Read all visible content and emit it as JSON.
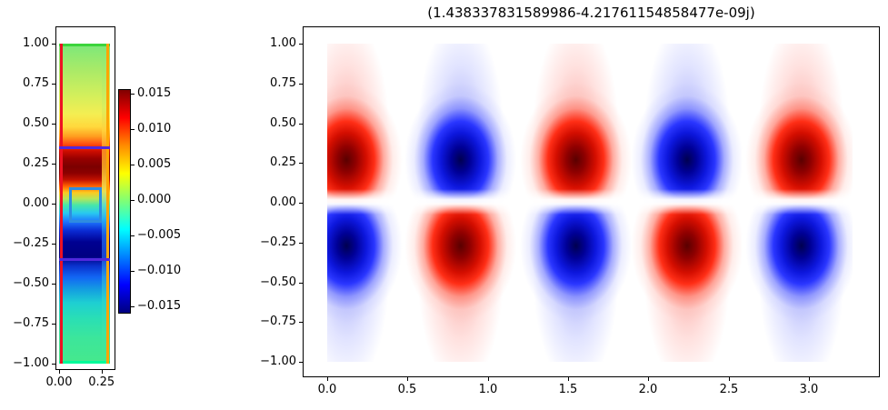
{
  "figure": {
    "title": "(1.438337831589986-4.21761154858477e-09j)"
  },
  "left_plot": {
    "x_ticks": [
      "0.00",
      "0.25"
    ],
    "y_ticks": [
      "1.00",
      "0.75",
      "0.50",
      "0.25",
      "0.00",
      "−0.25",
      "−0.50",
      "−0.75",
      "−1.00"
    ]
  },
  "colorbar": {
    "ticks": [
      "0.015",
      "0.010",
      "0.005",
      "0.000",
      "−0.005",
      "−0.010",
      "−0.015"
    ]
  },
  "right_plot": {
    "x_ticks": [
      "0.0",
      "0.5",
      "1.0",
      "1.5",
      "2.0",
      "2.5",
      "3.0"
    ],
    "y_ticks": [
      "1.00",
      "0.75",
      "0.50",
      "0.25",
      "0.00",
      "−0.25",
      "−0.50",
      "−0.75",
      "−1.00"
    ]
  },
  "chart_data": [
    {
      "type": "heatmap",
      "title": "",
      "xlabel": "",
      "ylabel": "",
      "extent": [
        0.0,
        0.3,
        -1.0,
        1.0
      ],
      "x_tick_values": [
        0.0,
        0.25
      ],
      "y_tick_values": [
        1.0,
        0.75,
        0.5,
        0.25,
        0.0,
        -0.25,
        -0.5,
        -0.75,
        -1.0
      ],
      "colormap": "jet",
      "colorbar_range": [
        -0.015,
        0.015
      ],
      "colorbar_tick_values": [
        0.015,
        0.01,
        0.005,
        0.0,
        -0.005,
        -0.01,
        -0.015
      ],
      "profile": {
        "description": "vertical 1D amplitude profile of the narrow-domain field, value estimated from jet colorbar",
        "y": [
          1.0,
          0.9,
          0.8,
          0.7,
          0.6,
          0.5,
          0.45,
          0.4,
          0.35,
          0.3,
          0.25,
          0.2,
          0.15,
          0.1,
          0.05,
          0.0,
          -0.05,
          -0.1,
          -0.15,
          -0.2,
          -0.25,
          -0.3,
          -0.35,
          -0.4,
          -0.5,
          -0.6,
          -0.7,
          -0.8,
          -0.9,
          -1.0
        ],
        "value": [
          0.001,
          0.002,
          0.003,
          0.0045,
          0.006,
          0.008,
          0.0095,
          0.011,
          0.013,
          0.0145,
          0.015,
          0.0145,
          0.012,
          0.008,
          0.003,
          -0.001,
          -0.006,
          -0.01,
          -0.013,
          -0.0145,
          -0.015,
          -0.0148,
          -0.013,
          -0.011,
          -0.008,
          -0.005,
          -0.0035,
          -0.0025,
          -0.002,
          -0.0015
        ]
      },
      "annotations": [
        {
          "name": "top-boundary-line",
          "color": "#3cd43c",
          "y": 1.0
        },
        {
          "name": "bottom-boundary-line",
          "color": "#00fa9a",
          "y": -1.0
        },
        {
          "name": "left-boundary-line",
          "color": "#ee1122",
          "x": 0.012
        },
        {
          "name": "right-boundary-line",
          "color": "#ffa500",
          "x": 0.288
        },
        {
          "name": "interface-line-upper",
          "color": "#5128dd",
          "y": 0.35
        },
        {
          "name": "interface-line-lower",
          "color": "#5128dd",
          "y": -0.35
        },
        {
          "name": "probe-rectangle",
          "color": "#2e8ce0",
          "x_range": [
            0.06,
            0.25
          ],
          "y_range": [
            -0.12,
            0.1
          ]
        }
      ]
    },
    {
      "type": "heatmap",
      "title": "(1.438337831589986-4.21761154858477e-09j)",
      "xlabel": "",
      "ylabel": "",
      "extent": [
        0.0,
        3.27,
        -1.0,
        1.0
      ],
      "x_tick_values": [
        0.0,
        0.5,
        1.0,
        1.5,
        2.0,
        2.5,
        3.0
      ],
      "y_tick_values": [
        1.0,
        0.75,
        0.5,
        0.25,
        0.0,
        -0.25,
        -0.5,
        -0.75,
        -1.0
      ],
      "colormap": "seismic",
      "pattern": "standing-wave mode: two mirrored rows of lobes, sign-alternating in x, antisymmetric about y=0, node line at y=0, amplitude fades toward y=±1",
      "x_period": 1.42,
      "blob_centers_x": [
        0.12,
        0.83,
        1.55,
        2.24,
        2.95
      ],
      "blob_center_abs_y": 0.27,
      "top_row_signs": [
        1,
        -1,
        1,
        -1,
        1
      ],
      "bottom_row_signs": [
        -1,
        1,
        -1,
        1,
        -1
      ],
      "positive_color": "#7f0000",
      "negative_color": "#00004d"
    }
  ]
}
